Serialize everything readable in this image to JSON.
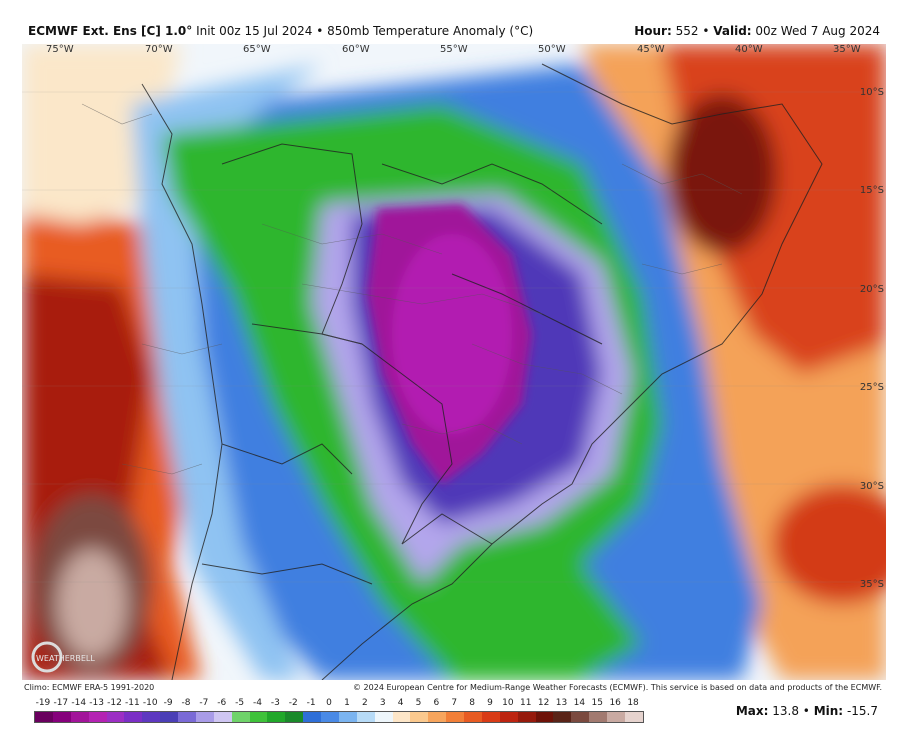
{
  "header": {
    "model": "ECMWF Ext. Ens [C] 1.0°",
    "init": "Init 00z 15 Jul 2024",
    "field": "850mb Temperature Anomaly (°C)",
    "hour_label": "Hour:",
    "hour_value": "552",
    "valid_label": "Valid:",
    "valid_value": "00z Wed 7 Aug 2024"
  },
  "lon_labels": [
    "75°W",
    "70°W",
    "65°W",
    "60°W",
    "55°W",
    "50°W",
    "45°W",
    "40°W",
    "35°W"
  ],
  "lat_labels": [
    "10°S",
    "15°S",
    "20°S",
    "25°S",
    "30°S",
    "35°S"
  ],
  "footer": {
    "climo": "Climo: ECMWF ERA-5 1991-2020",
    "credit": "© 2024 European Centre for Medium-Range Weather Forecasts (ECMWF). This service is based on data and products of the ECMWF."
  },
  "colorbar": {
    "labels": [
      "-19",
      "-17",
      "-14",
      "-13",
      "-12",
      "-11",
      "-10",
      "-9",
      "-8",
      "-7",
      "-6",
      "-5",
      "-4",
      "-3",
      "-2",
      "-1",
      "0",
      "1",
      "2",
      "3",
      "4",
      "5",
      "6",
      "7",
      "8",
      "9",
      "10",
      "11",
      "12",
      "13",
      "14",
      "15",
      "16",
      "18"
    ],
    "colors": [
      "#6a005f",
      "#86007c",
      "#a2149a",
      "#b423b3",
      "#9c2fc4",
      "#7b2fc6",
      "#5e38c0",
      "#4b3fb6",
      "#7a6ad6",
      "#a99ce8",
      "#cfc6f2",
      "#6fd36a",
      "#3fc23a",
      "#21a82a",
      "#1a8a2a",
      "#2f6fd8",
      "#4a8ae6",
      "#7bb4f0",
      "#b7dbf7",
      "#eef6fb",
      "#fde6c8",
      "#fbc98e",
      "#f7a55d",
      "#f27f38",
      "#e85b22",
      "#d93b16",
      "#bd2410",
      "#961a0c",
      "#6e1208",
      "#5a2418",
      "#7b4a3f",
      "#a27a70",
      "#c9aaa2",
      "#e6d3ce"
    ]
  },
  "stats": {
    "max_label": "Max:",
    "max_value": "13.8",
    "min_label": "Min:",
    "min_value": "-15.7"
  },
  "logo_text": "WEATHERBELL"
}
